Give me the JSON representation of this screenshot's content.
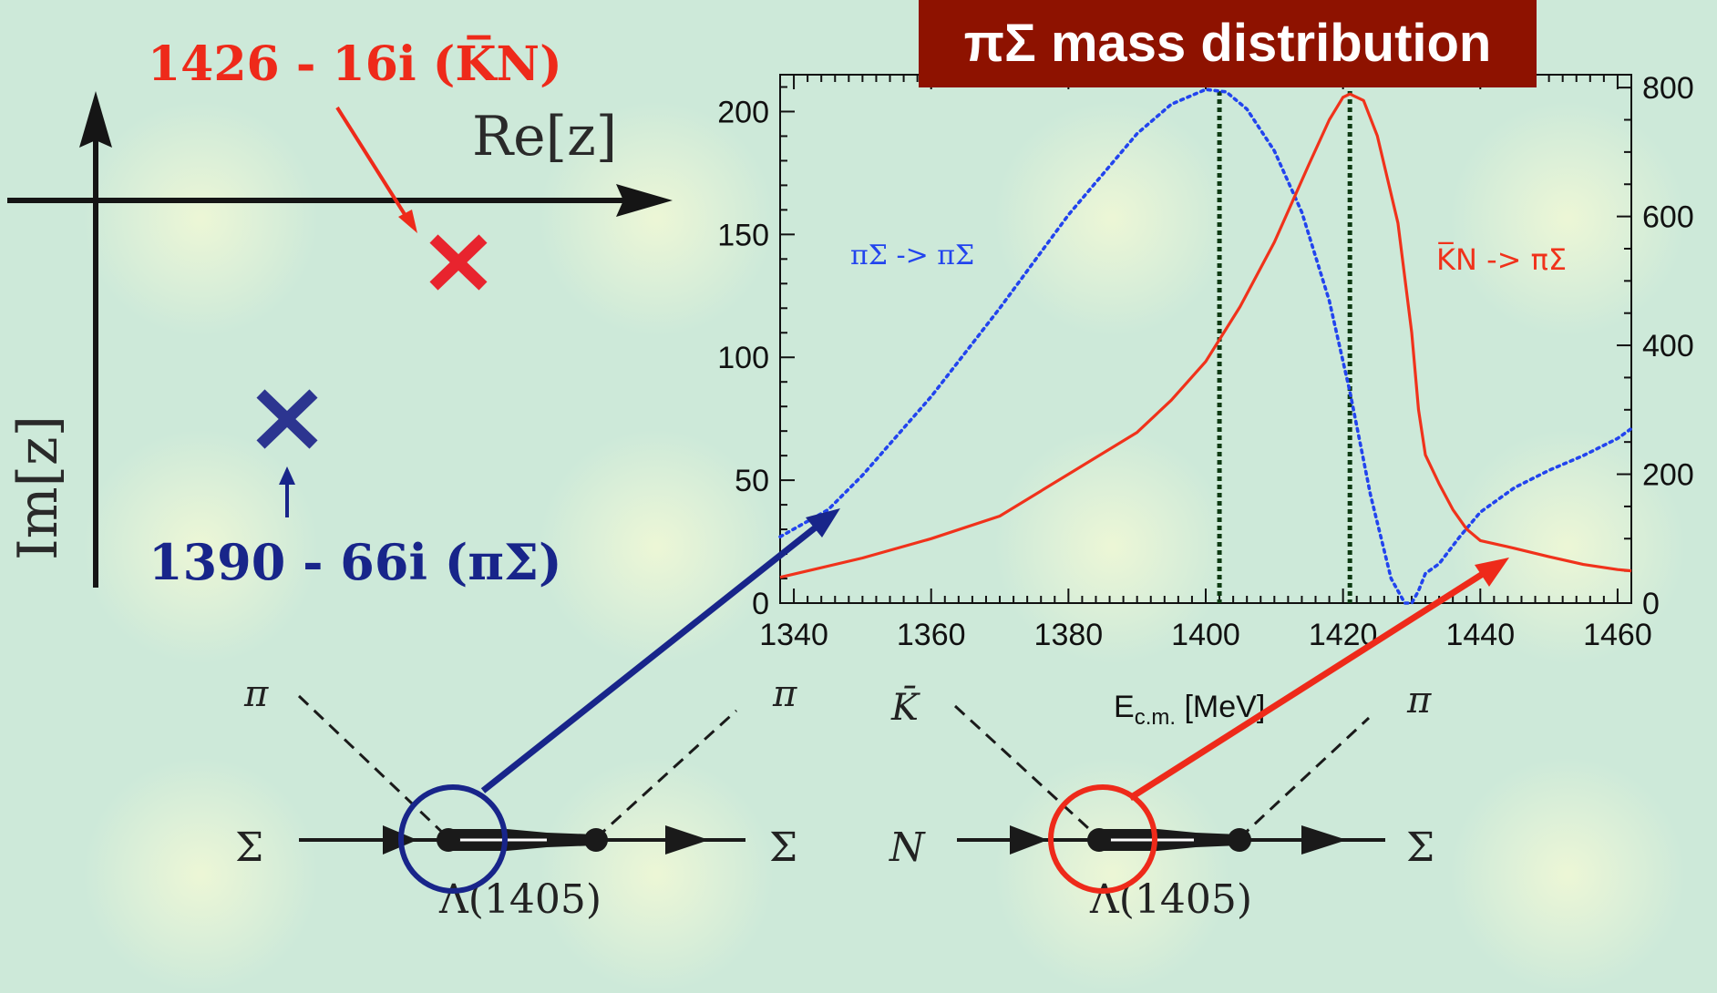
{
  "complex_plane": {
    "re_label": "Re[z]",
    "im_label": "Im[z]",
    "pole_kbar_n": "1426 - 16i (K̅N)",
    "pole_pi_sigma": "1390 - 66i (πΣ)",
    "colors": {
      "kbar_n": "#ee2a1a",
      "pi_sigma": "#18258a",
      "pole_kbar_n_mark": "#e8242e",
      "pole_pi_sigma_mark": "#2c3590"
    }
  },
  "chart_data": {
    "type": "line",
    "title": "πΣ mass distribution",
    "xlabel": "E",
    "xlabel_sub": "c.m.",
    "xlabel_unit": "[MeV]",
    "xlim": [
      1338,
      1462
    ],
    "xticks": [
      1340,
      1360,
      1380,
      1400,
      1420,
      1440,
      1460
    ],
    "ylim_left": [
      0,
      215
    ],
    "yticks_left": [
      0,
      50,
      100,
      150,
      200
    ],
    "ylim_right": [
      0,
      820
    ],
    "yticks_right": [
      0,
      200,
      400,
      600,
      800
    ],
    "vlines": [
      1402,
      1421
    ],
    "series": [
      {
        "name": "πΣ -> πΣ",
        "axis": "left",
        "style": "dotted",
        "color": "#2244ee",
        "x": [
          1338,
          1345,
          1350,
          1360,
          1370,
          1380,
          1390,
          1395,
          1400,
          1403,
          1406,
          1410,
          1414,
          1418,
          1421,
          1424,
          1427,
          1429,
          1430,
          1431,
          1432,
          1434,
          1437,
          1440,
          1445,
          1450,
          1455,
          1460,
          1462
        ],
        "y": [
          27,
          38,
          52,
          84,
          120,
          158,
          191,
          203,
          209,
          208,
          201,
          184,
          159,
          123,
          86,
          44,
          10,
          0,
          0,
          5,
          12,
          16,
          27,
          37,
          47,
          54,
          60,
          67,
          71
        ]
      },
      {
        "name": "K̅N -> πΣ",
        "axis": "right",
        "style": "solid",
        "color": "#f0321b",
        "x": [
          1338,
          1350,
          1360,
          1370,
          1380,
          1390,
          1395,
          1400,
          1405,
          1410,
          1415,
          1418,
          1420,
          1421,
          1423,
          1425,
          1428,
          1430,
          1431,
          1432,
          1434,
          1436,
          1438,
          1440,
          1445,
          1450,
          1455,
          1460,
          1462
        ],
        "y": [
          40,
          70,
          100,
          135,
          200,
          265,
          315,
          375,
          460,
          560,
          680,
          750,
          785,
          790,
          780,
          725,
          590,
          420,
          300,
          230,
          185,
          145,
          115,
          97,
          85,
          72,
          60,
          52,
          50
        ]
      }
    ],
    "series_labels": {
      "pi_sigma": "πΣ -> πΣ",
      "kbar_n": "K̅N -> πΣ"
    }
  },
  "diagrams": {
    "left": {
      "top_left": "π",
      "top_right": "π",
      "in": "Σ",
      "out": "Σ",
      "resonance": "Λ(1405)"
    },
    "right": {
      "top_left": "K̄",
      "top_right": "π",
      "in": "N",
      "out": "Σ",
      "resonance": "Λ(1405)"
    }
  }
}
